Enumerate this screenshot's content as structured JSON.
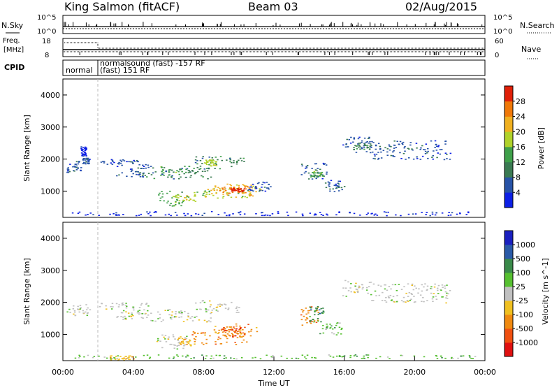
{
  "header": {
    "station": "King Salmon (fitACF)",
    "beam": "Beam 03",
    "date": "02/Aug/2015"
  },
  "top_panels": {
    "nsky_label": "N.Sky",
    "nsky_ticks": [
      "10^5",
      "10^0"
    ],
    "nsearch_label": "N.Search",
    "nsearch_ticks": [
      "10^5",
      "10^0"
    ],
    "freq_label": "Freq.",
    "freq_unit": "[MHz]",
    "freq_ticks": [
      "18",
      "8"
    ],
    "nave_label": "Nave",
    "nave_ticks": [
      "60",
      "0"
    ],
    "cpid_label": "CPID",
    "cpid_segments": [
      "normal",
      "normalsound (fast) -157 RF",
      "(fast) 151 RF"
    ]
  },
  "chart_data": [
    {
      "type": "heatmap",
      "title": "",
      "xlabel": "",
      "ylabel": "Slant Range [km]",
      "xlim": [
        0,
        24
      ],
      "ylim": [
        180,
        4500
      ],
      "yticks": [
        1000,
        2000,
        3000,
        4000
      ],
      "colorbar_label": "Power [dB]",
      "colorbar_ticks": [
        "4",
        "8",
        "12",
        "16",
        "20",
        "24",
        "28"
      ],
      "colors": [
        "#0c1fe6",
        "#2753a7",
        "#3a7a52",
        "#3fa04a",
        "#b0d22a",
        "#f0b020",
        "#f07808",
        "#e02008"
      ],
      "regions": [
        {
          "t": [
            0.2,
            1.0
          ],
          "r": [
            1600,
            1950
          ],
          "level": 1
        },
        {
          "t": [
            1.1,
            1.5
          ],
          "r": [
            1850,
            2050
          ],
          "level": 1
        },
        {
          "t": [
            1.0,
            1.3
          ],
          "r": [
            2100,
            2400
          ],
          "level": 0
        },
        {
          "t": [
            2.0,
            4.5
          ],
          "r": [
            1850,
            2000
          ],
          "level": 1
        },
        {
          "t": [
            3.0,
            5.0
          ],
          "r": [
            1450,
            1850
          ],
          "level": 1
        },
        {
          "t": [
            4.3,
            8.5
          ],
          "r": [
            1400,
            1750
          ],
          "level": 2
        },
        {
          "t": [
            5.5,
            7.5
          ],
          "r": [
            1500,
            1800
          ],
          "level": 3
        },
        {
          "t": [
            7.5,
            10.3
          ],
          "r": [
            1700,
            2100
          ],
          "level": 2
        },
        {
          "t": [
            8.0,
            8.7
          ],
          "r": [
            1800,
            2000
          ],
          "level": 4
        },
        {
          "t": [
            5.3,
            6.8
          ],
          "r": [
            550,
            1050
          ],
          "level": 3
        },
        {
          "t": [
            6.3,
            7.5
          ],
          "r": [
            650,
            900
          ],
          "level": 4
        },
        {
          "t": [
            7.3,
            11.3
          ],
          "r": [
            800,
            1100
          ],
          "level": 4
        },
        {
          "t": [
            8.2,
            11.0
          ],
          "r": [
            850,
            1250
          ],
          "level": 5
        },
        {
          "t": [
            9.0,
            10.5
          ],
          "r": [
            950,
            1150
          ],
          "level": 6
        },
        {
          "t": [
            9.5,
            10.3
          ],
          "r": [
            1000,
            1100
          ],
          "level": 7
        },
        {
          "t": [
            10.5,
            11.8
          ],
          "r": [
            1000,
            1300
          ],
          "level": 1
        },
        {
          "t": [
            13.5,
            15.0
          ],
          "r": [
            1350,
            1900
          ],
          "level": 1
        },
        {
          "t": [
            14.0,
            14.8
          ],
          "r": [
            1450,
            1700
          ],
          "level": 3
        },
        {
          "t": [
            14.8,
            16.0
          ],
          "r": [
            1000,
            1350
          ],
          "level": 1
        },
        {
          "t": [
            15.8,
            17.5
          ],
          "r": [
            2200,
            2700
          ],
          "level": 1
        },
        {
          "t": [
            16.5,
            17.5
          ],
          "r": [
            2300,
            2550
          ],
          "level": 2
        },
        {
          "t": [
            17.5,
            22.0
          ],
          "r": [
            2000,
            2600
          ],
          "level": 1
        },
        {
          "t": [
            0.5,
            23.5
          ],
          "r": [
            250,
            380
          ],
          "level": 0
        }
      ]
    },
    {
      "type": "heatmap",
      "title": "",
      "xlabel": "Time UT",
      "ylabel": "Slant Range [km]",
      "xlim": [
        0,
        24
      ],
      "ylim": [
        180,
        4500
      ],
      "xticks": [
        "00:00",
        "04:00",
        "08:00",
        "12:00",
        "16:00",
        "20:00",
        "00:00"
      ],
      "yticks": [
        1000,
        2000,
        3000,
        4000
      ],
      "colorbar_label": "Velocity [m s^-1]",
      "colorbar_ticks": [
        "-1000",
        "-500",
        "-100",
        "-25",
        "25",
        "100",
        "500",
        "1000"
      ],
      "colors": [
        "#e01010",
        "#f05010",
        "#f08a10",
        "#f0c020",
        "#c0c0c0",
        "#56c030",
        "#3a8a4a",
        "#2a5aa8",
        "#1a20c0"
      ],
      "regions": [
        {
          "t": [
            0.2,
            1.5
          ],
          "r": [
            1600,
            1950
          ],
          "level": 4
        },
        {
          "t": [
            2.0,
            5.0
          ],
          "r": [
            1800,
            2000
          ],
          "level": 4
        },
        {
          "t": [
            3.0,
            4.5
          ],
          "r": [
            1450,
            1800
          ],
          "level": 4
        },
        {
          "t": [
            4.5,
            8.5
          ],
          "r": [
            1400,
            1800
          ],
          "level": 4
        },
        {
          "t": [
            7.5,
            10.0
          ],
          "r": [
            1700,
            2100
          ],
          "level": 4
        },
        {
          "t": [
            5.3,
            7.0
          ],
          "r": [
            550,
            1000
          ],
          "level": 4
        },
        {
          "t": [
            6.5,
            7.5
          ],
          "r": [
            650,
            900
          ],
          "level": 3
        },
        {
          "t": [
            7.3,
            10.5
          ],
          "r": [
            700,
            1100
          ],
          "level": 2
        },
        {
          "t": [
            8.5,
            11.0
          ],
          "r": [
            900,
            1350
          ],
          "level": 2
        },
        {
          "t": [
            9.0,
            10.3
          ],
          "r": [
            950,
            1250
          ],
          "level": 1
        },
        {
          "t": [
            13.5,
            14.5
          ],
          "r": [
            1300,
            1900
          ],
          "level": 2
        },
        {
          "t": [
            14.0,
            14.8
          ],
          "r": [
            1400,
            1900
          ],
          "level": 6
        },
        {
          "t": [
            14.5,
            16.0
          ],
          "r": [
            1000,
            1400
          ],
          "level": 5
        },
        {
          "t": [
            15.8,
            17.5
          ],
          "r": [
            2200,
            2700
          ],
          "level": 4
        },
        {
          "t": [
            17.5,
            22.0
          ],
          "r": [
            2000,
            2600
          ],
          "level": 4
        },
        {
          "t": [
            2.5,
            4.0
          ],
          "r": [
            200,
            350
          ],
          "level": 3
        },
        {
          "t": [
            0.5,
            23.5
          ],
          "r": [
            250,
            380
          ],
          "level": 5
        }
      ]
    }
  ]
}
